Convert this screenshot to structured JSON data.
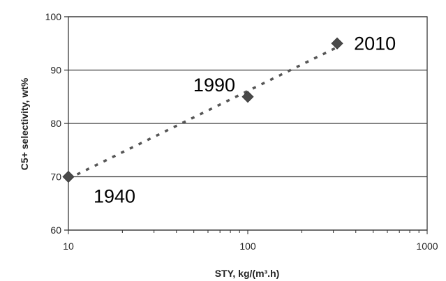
{
  "chart_data": {
    "type": "scatter",
    "title": "",
    "xlabel": "STY, kg/(m³.h)",
    "ylabel": "C5+ selectivity, wt%",
    "x_scale": "log",
    "xlim": [
      10,
      1000
    ],
    "ylim": [
      60,
      100
    ],
    "x_ticks": [
      "10",
      "100",
      "1000"
    ],
    "y_ticks": [
      "60",
      "70",
      "80",
      "90",
      "100"
    ],
    "grid": "horizontal",
    "trendline": "dotted",
    "marker": "diamond",
    "marker_color": "#4a4a4a",
    "points": [
      {
        "x": 10,
        "y": 70,
        "label": "1940"
      },
      {
        "x": 100,
        "y": 85,
        "label": "1990"
      },
      {
        "x": 315,
        "y": 95,
        "label": "2010"
      }
    ]
  }
}
